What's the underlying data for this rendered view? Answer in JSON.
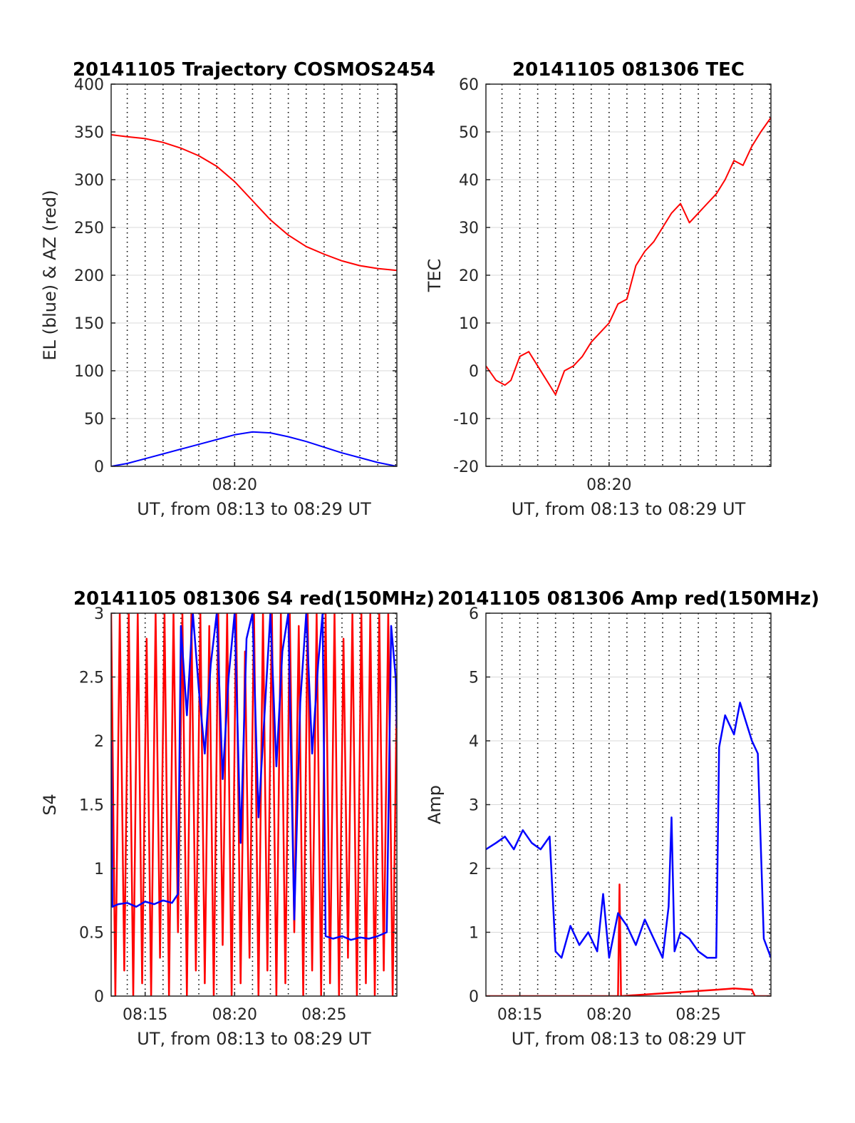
{
  "colors": {
    "red": "#ff0000",
    "blue": "#0000ff",
    "grid": "#d9d9d9",
    "axis": "#262626"
  },
  "chart_data": [
    {
      "id": "trajectory",
      "type": "line",
      "title": "20141105 Trajectory COSMOS2454",
      "xlabel": "UT, from 08:13 to 08:29 UT",
      "ylabel": "EL (blue) & AZ (red)",
      "xlim": [
        "08:13:06",
        "08:29:04"
      ],
      "ylim": [
        0,
        400
      ],
      "yticks": [
        0,
        50,
        100,
        150,
        200,
        250,
        300,
        350,
        400
      ],
      "xticks": [
        "08:20"
      ],
      "grid": true,
      "series": [
        {
          "color": "red",
          "x": [
            "08:13:06",
            "08:14:00",
            "08:15:00",
            "08:16:00",
            "08:17:00",
            "08:18:00",
            "08:19:00",
            "08:20:00",
            "08:21:00",
            "08:22:00",
            "08:23:00",
            "08:24:00",
            "08:25:00",
            "08:26:00",
            "08:27:00",
            "08:28:00",
            "08:29:04"
          ],
          "y": [
            347,
            345,
            343,
            339,
            333,
            325,
            314,
            298,
            278,
            258,
            242,
            230,
            222,
            215,
            210,
            207,
            205
          ]
        },
        {
          "color": "blue",
          "x": [
            "08:13:06",
            "08:14:00",
            "08:15:00",
            "08:16:00",
            "08:17:00",
            "08:18:00",
            "08:19:00",
            "08:20:00",
            "08:21:00",
            "08:22:00",
            "08:23:00",
            "08:24:00",
            "08:25:00",
            "08:26:00",
            "08:27:00",
            "08:28:00",
            "08:29:04"
          ],
          "y": [
            0,
            3,
            8,
            13,
            18,
            23,
            28,
            33,
            36,
            35,
            31,
            26,
            20,
            14,
            9,
            4,
            0
          ]
        }
      ]
    },
    {
      "id": "tec",
      "type": "line",
      "title": "20141105 081306 TEC",
      "xlabel": "UT, from 08:13 to 08:29 UT",
      "ylabel": "TEC",
      "xlim": [
        "08:13:06",
        "08:29:04"
      ],
      "ylim": [
        -20,
        60
      ],
      "yticks": [
        -20,
        -10,
        0,
        10,
        20,
        30,
        40,
        50,
        60
      ],
      "xticks": [
        "08:20"
      ],
      "grid": true,
      "series": [
        {
          "color": "red",
          "x": [
            "08:13:06",
            "08:13:40",
            "08:14:10",
            "08:14:30",
            "08:15:00",
            "08:15:30",
            "08:15:50",
            "08:16:20",
            "08:16:40",
            "08:17:00",
            "08:17:30",
            "08:18:00",
            "08:18:30",
            "08:19:00",
            "08:19:30",
            "08:20:00",
            "08:20:30",
            "08:21:00",
            "08:21:30",
            "08:22:00",
            "08:22:30",
            "08:23:00",
            "08:23:30",
            "08:24:00",
            "08:24:30",
            "08:25:00",
            "08:25:30",
            "08:26:00",
            "08:26:30",
            "08:27:00",
            "08:27:30",
            "08:28:00",
            "08:28:30",
            "08:29:04"
          ],
          "y": [
            1,
            -2,
            -3,
            -2,
            3,
            4,
            2,
            -1,
            -3,
            -5,
            0,
            1,
            3,
            6,
            8,
            10,
            14,
            15,
            22,
            25,
            27,
            30,
            33,
            35,
            31,
            33,
            35,
            37,
            40,
            44,
            43,
            47,
            50,
            53
          ]
        }
      ]
    },
    {
      "id": "s4",
      "type": "line",
      "title": "20141105 081306 S4 red(150MHz)",
      "xlabel": "UT, from 08:13 to 08:29 UT",
      "ylabel": "S4",
      "xlim": [
        "08:13:06",
        "08:29:04"
      ],
      "ylim": [
        0,
        3
      ],
      "yticks": [
        0,
        0.5,
        1,
        1.5,
        2,
        2.5,
        3
      ],
      "xticks": [
        "08:15",
        "08:20",
        "08:25"
      ],
      "grid": true,
      "series": [
        {
          "color": "red",
          "x": [
            "08:13:06",
            "08:13:20",
            "08:13:35",
            "08:13:50",
            "08:14:05",
            "08:14:20",
            "08:14:35",
            "08:14:50",
            "08:15:05",
            "08:15:20",
            "08:15:35",
            "08:15:50",
            "08:16:05",
            "08:16:20",
            "08:16:35",
            "08:16:50",
            "08:17:05",
            "08:17:20",
            "08:17:35",
            "08:17:50",
            "08:18:05",
            "08:18:20",
            "08:18:35",
            "08:18:50",
            "08:19:05",
            "08:19:20",
            "08:19:35",
            "08:19:50",
            "08:20:05",
            "08:20:20",
            "08:20:35",
            "08:20:50",
            "08:21:05",
            "08:21:20",
            "08:21:35",
            "08:21:50",
            "08:22:05",
            "08:22:20",
            "08:22:35",
            "08:22:50",
            "08:23:05",
            "08:23:20",
            "08:23:35",
            "08:23:50",
            "08:24:05",
            "08:24:20",
            "08:24:35",
            "08:24:50",
            "08:25:05",
            "08:25:20",
            "08:25:35",
            "08:25:50",
            "08:26:05",
            "08:26:20",
            "08:26:35",
            "08:26:50",
            "08:27:05",
            "08:27:20",
            "08:27:35",
            "08:27:50",
            "08:28:05",
            "08:28:20",
            "08:28:35",
            "08:28:50",
            "08:29:04"
          ],
          "y": [
            3,
            0,
            3,
            0.2,
            3,
            0,
            3,
            0.1,
            2.8,
            0,
            3,
            0.3,
            3,
            0,
            3,
            0.5,
            3,
            0,
            3,
            0.2,
            3,
            0.1,
            2.9,
            0,
            3,
            0.4,
            3,
            0,
            3,
            0.1,
            2.7,
            0.3,
            3,
            0,
            3,
            0.2,
            3,
            0,
            3,
            0.1,
            3,
            0.5,
            2.9,
            0,
            3,
            0.2,
            3,
            0,
            3,
            0.1,
            3,
            0,
            2.8,
            0.3,
            3,
            0,
            3,
            0.1,
            3,
            0,
            3,
            0.2,
            3,
            0,
            2.4
          ]
        },
        {
          "color": "blue",
          "x": [
            "08:13:06",
            "08:13:10",
            "08:13:30",
            "08:14:00",
            "08:14:30",
            "08:15:00",
            "08:15:30",
            "08:16:00",
            "08:16:30",
            "08:16:50",
            "08:17:00",
            "08:17:20",
            "08:17:40",
            "08:18:00",
            "08:18:20",
            "08:18:40",
            "08:19:00",
            "08:19:20",
            "08:19:40",
            "08:20:00",
            "08:20:20",
            "08:20:40",
            "08:21:00",
            "08:21:20",
            "08:21:40",
            "08:22:00",
            "08:22:20",
            "08:22:40",
            "08:23:00",
            "08:23:20",
            "08:23:40",
            "08:24:00",
            "08:24:20",
            "08:24:40",
            "08:24:55",
            "08:25:05",
            "08:25:30",
            "08:26:00",
            "08:26:30",
            "08:27:00",
            "08:27:30",
            "08:28:00",
            "08:28:30",
            "08:28:45",
            "08:29:00",
            "08:29:04"
          ],
          "y": [
            2.0,
            0.7,
            0.72,
            0.73,
            0.7,
            0.74,
            0.72,
            0.75,
            0.73,
            0.8,
            2.9,
            2.2,
            3,
            2.4,
            1.9,
            2.6,
            3,
            1.7,
            2.5,
            3,
            1.2,
            2.8,
            3,
            1.4,
            2.2,
            3,
            1.8,
            2.7,
            3,
            0.6,
            2.3,
            3,
            1.9,
            2.6,
            3,
            0.47,
            0.45,
            0.47,
            0.44,
            0.46,
            0.45,
            0.47,
            0.5,
            2.9,
            2.5,
            2.1
          ]
        }
      ]
    },
    {
      "id": "amp",
      "type": "line",
      "title": "20141105 081306 Amp red(150MHz)",
      "xlabel": "UT, from 08:13 to 08:29 UT",
      "ylabel": "Amp",
      "xlim": [
        "08:13:06",
        "08:29:04"
      ],
      "ylim": [
        0,
        6
      ],
      "yticks": [
        0,
        1,
        2,
        3,
        4,
        5,
        6
      ],
      "xticks": [
        "08:15",
        "08:20",
        "08:25"
      ],
      "grid": true,
      "series": [
        {
          "color": "red",
          "x": [
            "08:13:06",
            "08:20:30",
            "08:20:35",
            "08:20:40",
            "08:26:05",
            "08:27:00",
            "08:28:00",
            "08:28:10",
            "08:29:04"
          ],
          "y": [
            0,
            0,
            1.75,
            0,
            0.1,
            0.12,
            0.1,
            0,
            0
          ]
        },
        {
          "color": "blue",
          "x": [
            "08:13:06",
            "08:13:40",
            "08:14:10",
            "08:14:40",
            "08:15:10",
            "08:15:40",
            "08:16:10",
            "08:16:40",
            "08:17:00",
            "08:17:20",
            "08:17:50",
            "08:18:20",
            "08:18:50",
            "08:19:20",
            "08:19:40",
            "08:20:00",
            "08:20:30",
            "08:21:00",
            "08:21:30",
            "08:22:00",
            "08:22:30",
            "08:23:00",
            "08:23:20",
            "08:23:30",
            "08:23:40",
            "08:24:00",
            "08:24:30",
            "08:25:00",
            "08:25:30",
            "08:26:00",
            "08:26:10",
            "08:26:30",
            "08:27:00",
            "08:27:20",
            "08:27:40",
            "08:28:00",
            "08:28:20",
            "08:28:40",
            "08:29:04"
          ],
          "y": [
            2.3,
            2.4,
            2.5,
            2.3,
            2.6,
            2.4,
            2.3,
            2.5,
            0.7,
            0.6,
            1.1,
            0.8,
            1.0,
            0.7,
            1.6,
            0.6,
            1.3,
            1.1,
            0.8,
            1.2,
            0.9,
            0.6,
            1.4,
            2.8,
            0.7,
            1.0,
            0.9,
            0.7,
            0.6,
            0.6,
            3.9,
            4.4,
            4.1,
            4.6,
            4.3,
            4.0,
            3.8,
            0.9,
            0.6
          ]
        }
      ]
    }
  ]
}
